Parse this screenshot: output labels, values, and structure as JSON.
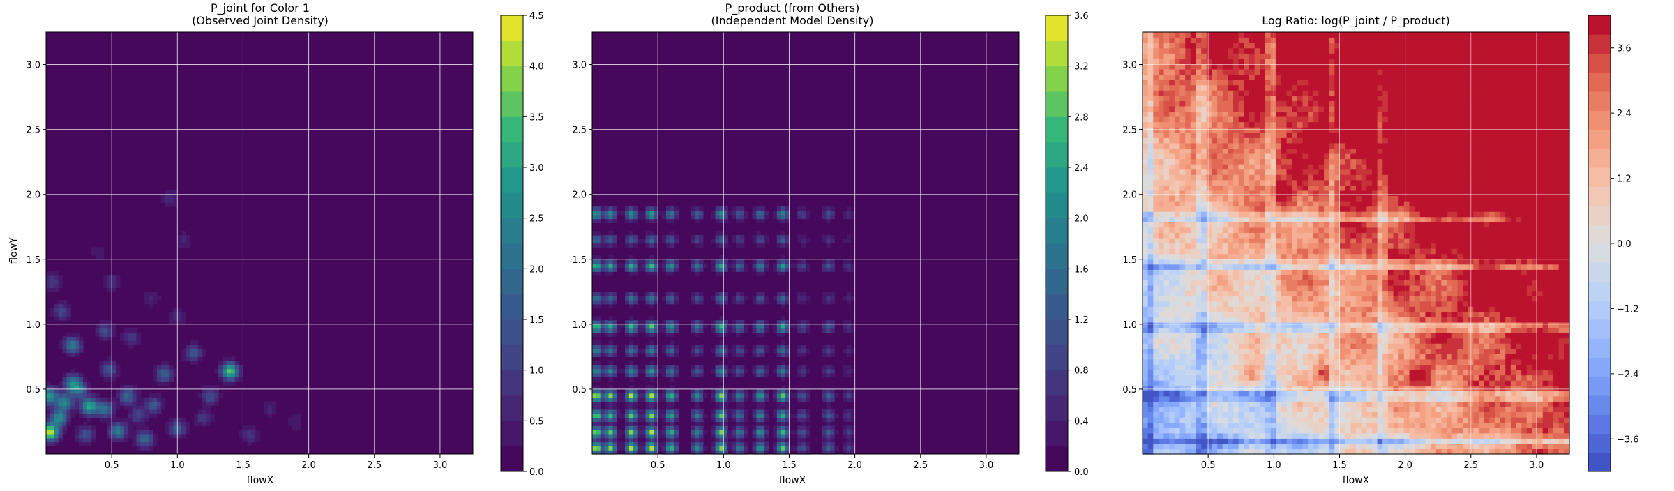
{
  "chart_data": [
    {
      "type": "heatmap",
      "title_line1": "P_joint for Color 1",
      "title_line2": "(Observed Joint Density)",
      "xlabel": "flowX",
      "ylabel": "flowY",
      "xlim": [
        0,
        3.25
      ],
      "ylim": [
        0,
        3.25
      ],
      "x_ticks": [
        0.5,
        1.0,
        1.5,
        2.0,
        2.5,
        3.0
      ],
      "x_tick_labels": [
        "0.5",
        "1.0",
        "1.5",
        "2.0",
        "2.5",
        "3.0"
      ],
      "y_ticks": [
        0.5,
        1.0,
        1.5,
        2.0,
        2.5,
        3.0
      ],
      "y_tick_labels": [
        "0.5",
        "1.0",
        "1.5",
        "2.0",
        "2.5",
        "3.0"
      ],
      "grid": true,
      "colormap": "viridis",
      "levels": 18,
      "colorbar": {
        "min": 0.0,
        "max": 4.5,
        "ticks": [
          0.0,
          0.5,
          1.0,
          1.5,
          2.0,
          2.5,
          3.0,
          3.5,
          4.0,
          4.5
        ],
        "tick_labels": [
          "0.0",
          "0.5",
          "1.0",
          "1.5",
          "2.0",
          "2.5",
          "3.0",
          "3.5",
          "4.0",
          "4.5"
        ]
      },
      "density_peaks": [
        {
          "x": 0.02,
          "y": 0.45,
          "v": 2.9
        },
        {
          "x": 0.03,
          "y": 0.17,
          "v": 4.4
        },
        {
          "x": 0.1,
          "y": 0.28,
          "v": 2.7
        },
        {
          "x": 0.14,
          "y": 0.4,
          "v": 2.6
        },
        {
          "x": 0.2,
          "y": 0.55,
          "v": 2.2
        },
        {
          "x": 0.25,
          "y": 0.5,
          "v": 2.0
        },
        {
          "x": 0.33,
          "y": 0.37,
          "v": 3.2
        },
        {
          "x": 0.45,
          "y": 0.35,
          "v": 2.1
        },
        {
          "x": 0.55,
          "y": 0.18,
          "v": 2.4
        },
        {
          "x": 0.62,
          "y": 0.45,
          "v": 1.9
        },
        {
          "x": 0.75,
          "y": 0.12,
          "v": 2.0
        },
        {
          "x": 0.82,
          "y": 0.38,
          "v": 1.6
        },
        {
          "x": 0.9,
          "y": 0.62,
          "v": 1.8
        },
        {
          "x": 1.12,
          "y": 0.78,
          "v": 1.6
        },
        {
          "x": 1.0,
          "y": 0.2,
          "v": 1.7
        },
        {
          "x": 1.4,
          "y": 0.64,
          "v": 3.8
        },
        {
          "x": 1.25,
          "y": 0.45,
          "v": 1.3
        },
        {
          "x": 0.2,
          "y": 0.84,
          "v": 2.3
        },
        {
          "x": 0.05,
          "y": 1.33,
          "v": 1.0
        },
        {
          "x": 0.12,
          "y": 1.1,
          "v": 1.2
        },
        {
          "x": 0.45,
          "y": 0.95,
          "v": 1.3
        },
        {
          "x": 0.65,
          "y": 0.9,
          "v": 1.0
        },
        {
          "x": 1.0,
          "y": 1.05,
          "v": 0.7
        },
        {
          "x": 0.95,
          "y": 1.97,
          "v": 0.7
        },
        {
          "x": 0.5,
          "y": 1.32,
          "v": 0.8
        },
        {
          "x": 1.05,
          "y": 1.65,
          "v": 0.6
        },
        {
          "x": 0.48,
          "y": 0.65,
          "v": 1.5
        },
        {
          "x": 0.3,
          "y": 0.15,
          "v": 1.5
        },
        {
          "x": 0.7,
          "y": 0.3,
          "v": 1.2
        },
        {
          "x": 1.2,
          "y": 0.28,
          "v": 1.0
        },
        {
          "x": 1.55,
          "y": 0.15,
          "v": 1.0
        },
        {
          "x": 1.7,
          "y": 0.35,
          "v": 0.6
        },
        {
          "x": 1.9,
          "y": 0.25,
          "v": 0.5
        },
        {
          "x": 0.4,
          "y": 1.55,
          "v": 0.5
        },
        {
          "x": 0.8,
          "y": 1.2,
          "v": 0.6
        }
      ]
    },
    {
      "type": "heatmap",
      "title_line1": "P_product (from Others)",
      "title_line2": "(Independent Model Density)",
      "xlabel": "flowX",
      "ylabel": "",
      "xlim": [
        0,
        3.25
      ],
      "ylim": [
        0,
        3.25
      ],
      "x_ticks": [
        0.5,
        1.0,
        1.5,
        2.0,
        2.5,
        3.0
      ],
      "x_tick_labels": [
        "0.5",
        "1.0",
        "1.5",
        "2.0",
        "2.5",
        "3.0"
      ],
      "y_ticks": [
        0.5,
        1.0,
        1.5,
        2.0,
        2.5,
        3.0
      ],
      "y_tick_labels": [
        "0.5",
        "1.0",
        "1.5",
        "2.0",
        "2.5",
        "3.0"
      ],
      "grid": true,
      "colormap": "viridis",
      "levels": 18,
      "colorbar": {
        "min": 0.0,
        "max": 3.6,
        "ticks": [
          0.0,
          0.4,
          0.8,
          1.2,
          1.6,
          2.0,
          2.4,
          2.8,
          3.2,
          3.6
        ],
        "tick_labels": [
          "0.0",
          "0.4",
          "0.8",
          "1.2",
          "1.6",
          "2.0",
          "2.4",
          "2.8",
          "3.2",
          "3.6"
        ]
      },
      "x_marginal_peaks": [
        0.03,
        0.14,
        0.3,
        0.45,
        0.6,
        0.8,
        0.98,
        1.12,
        1.28,
        1.45,
        1.6,
        1.8,
        1.95
      ],
      "x_marginal_weights": [
        1.0,
        0.9,
        0.95,
        1.0,
        0.8,
        0.6,
        0.95,
        0.55,
        0.7,
        0.85,
        0.35,
        0.45,
        0.25
      ],
      "y_marginal_peaks": [
        0.05,
        0.17,
        0.3,
        0.45,
        0.64,
        0.8,
        0.98,
        1.2,
        1.45,
        1.65,
        1.85
      ],
      "y_marginal_weights": [
        1.0,
        0.95,
        0.9,
        1.0,
        0.65,
        0.55,
        0.85,
        0.5,
        0.8,
        0.45,
        0.7
      ]
    },
    {
      "type": "heatmap",
      "title": "Log Ratio: log(P_joint / P_product)",
      "xlabel": "flowX",
      "ylabel": "",
      "xlim": [
        0,
        3.25
      ],
      "ylim": [
        0,
        3.25
      ],
      "x_ticks": [
        0.5,
        1.0,
        1.5,
        2.0,
        2.5,
        3.0
      ],
      "x_tick_labels": [
        "0.5",
        "1.0",
        "1.5",
        "2.0",
        "2.5",
        "3.0"
      ],
      "y_ticks": [
        0.5,
        1.0,
        1.5,
        2.0,
        2.5,
        3.0
      ],
      "y_tick_labels": [
        "0.5",
        "1.0",
        "1.5",
        "2.0",
        "2.5",
        "3.0"
      ],
      "grid": true,
      "colormap": "coolwarm",
      "levels": 24,
      "colorbar": {
        "min": -4.2,
        "max": 4.2,
        "ticks": [
          -3.6,
          -2.4,
          -1.2,
          0.0,
          1.2,
          2.4,
          3.6
        ],
        "tick_labels": [
          "−3.6",
          "−2.4",
          "−1.2",
          "0.0",
          "1.2",
          "2.4",
          "3.6"
        ]
      },
      "hotspots": [
        {
          "x": 0.82,
          "y": 0.62,
          "v": 2.6
        },
        {
          "x": 1.05,
          "y": 2.02,
          "v": 2.8
        },
        {
          "x": 1.4,
          "y": 0.62,
          "v": 2.6
        },
        {
          "x": 2.12,
          "y": 0.6,
          "v": 3.0
        },
        {
          "x": 3.1,
          "y": 3.1,
          "v": 3.4
        },
        {
          "x": 1.4,
          "y": 2.42,
          "v": 2.6
        }
      ],
      "cold_lines_y": [
        1.82,
        1.45,
        0.98,
        0.45,
        0.1
      ],
      "cold_lines_x": [
        0.05,
        0.45,
        0.98,
        1.45,
        1.82
      ]
    }
  ]
}
